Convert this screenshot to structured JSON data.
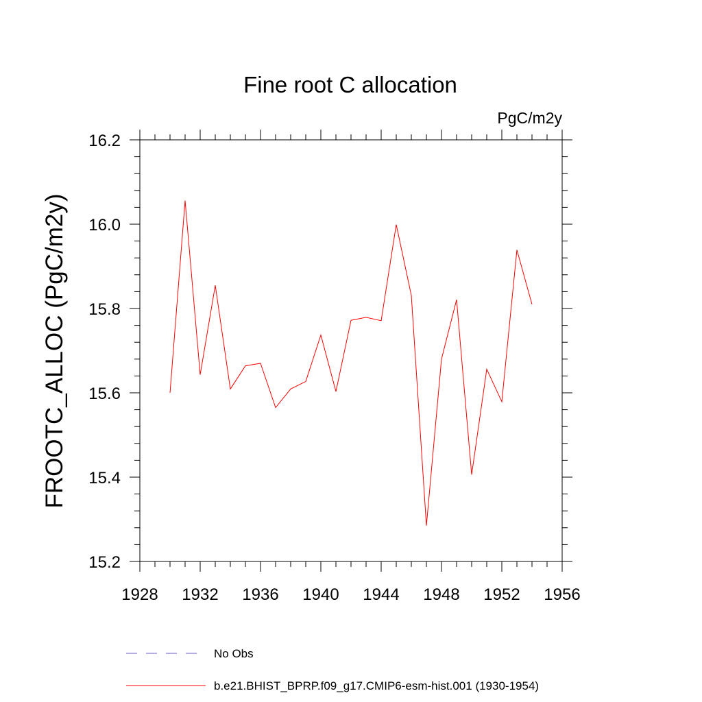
{
  "chart_data": {
    "type": "line",
    "title": "Fine root C allocation",
    "units_label": "PgC/m2y",
    "ylabel": "FROOTC_ALLOC  (PgC/m2y)",
    "xlabel": "",
    "xlim": [
      1928,
      1956
    ],
    "ylim": [
      15.2,
      16.2
    ],
    "x_ticks": [
      1928,
      1932,
      1936,
      1940,
      1944,
      1948,
      1952,
      1956
    ],
    "y_ticks": [
      15.2,
      15.4,
      15.6,
      15.8,
      16.0,
      16.2
    ],
    "y_tick_labels": [
      "15.2",
      "15.4",
      "15.6",
      "15.8",
      "16.0",
      "16.2"
    ],
    "x_minor_step": 1,
    "y_minor_step": 0.04,
    "grid": false,
    "legend_position": "bottom-left",
    "series": [
      {
        "name": "b.e21.BHIST_BPRP.f09_g17.CMIP6-esm-hist.001 (1930-1954)",
        "color": "#ff0000",
        "style": "solid",
        "x": [
          1930,
          1931,
          1932,
          1933,
          1934,
          1935,
          1936,
          1937,
          1938,
          1939,
          1940,
          1941,
          1942,
          1943,
          1944,
          1945,
          1946,
          1947,
          1948,
          1949,
          1950,
          1951,
          1952,
          1953,
          1954
        ],
        "values": [
          15.6,
          16.056,
          15.643,
          15.855,
          15.609,
          15.664,
          15.67,
          15.565,
          15.609,
          15.627,
          15.737,
          15.603,
          15.772,
          15.779,
          15.771,
          15.999,
          15.831,
          15.285,
          15.68,
          15.821,
          15.406,
          15.656,
          15.579,
          15.939,
          15.81
        ]
      }
    ],
    "legend_only_entries": [
      {
        "name": "No Obs",
        "color": "#6a5acd",
        "style": "dashed"
      }
    ]
  }
}
